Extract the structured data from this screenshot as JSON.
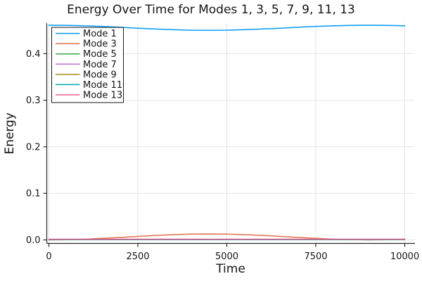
{
  "colors": {
    "background": "#FFFFFF",
    "grid": "#E3E3E3",
    "axis": "#2A2A2A",
    "text": "#141414",
    "legend_border": "#1A1A1A",
    "legend_background": "#FFFFFF"
  },
  "chart_data": {
    "type": "line",
    "title": "Energy Over Time for Modes 1, 3, 5, 7, 9, 11, 13",
    "xlabel": "Time",
    "ylabel": "Energy",
    "xlim": [
      -70,
      10290
    ],
    "ylim": [
      -0.008,
      0.465
    ],
    "grid": true,
    "legend_position": "top-left",
    "x_ticks": [
      0,
      2500,
      5000,
      7500,
      10000
    ],
    "x_tick_labels": [
      "0",
      "2500",
      "5000",
      "7500",
      "10000"
    ],
    "y_ticks": [
      0.0,
      0.1,
      0.2,
      0.3,
      0.4
    ],
    "y_tick_labels": [
      "0.0",
      "0.1",
      "0.2",
      "0.3",
      "0.4"
    ],
    "x": [
      0,
      500,
      1000,
      1500,
      2000,
      2500,
      3000,
      3500,
      4000,
      4500,
      5000,
      5500,
      6000,
      6500,
      7000,
      7500,
      8000,
      8500,
      9000,
      9500,
      10000
    ],
    "series": [
      {
        "name": "Mode 1",
        "color": "#009AFA",
        "values": [
          0.461,
          0.4607,
          0.4597,
          0.4583,
          0.4565,
          0.4545,
          0.4528,
          0.4513,
          0.4503,
          0.45,
          0.4503,
          0.4513,
          0.4528,
          0.4545,
          0.4565,
          0.4583,
          0.4597,
          0.4607,
          0.461,
          0.4607,
          0.4597
        ]
      },
      {
        "name": "Mode 3",
        "color": "#E36F47",
        "values": [
          0.0,
          0.0004,
          0.0015,
          0.0033,
          0.0053,
          0.0075,
          0.0096,
          0.0113,
          0.0124,
          0.0128,
          0.0124,
          0.0113,
          0.0096,
          0.0075,
          0.0053,
          0.0033,
          0.0015,
          0.0004,
          0.0,
          0.0004,
          0.0015
        ]
      },
      {
        "name": "Mode 5",
        "color": "#3DA44E",
        "values": [
          0.0008,
          0.0008,
          0.0008,
          0.0008,
          0.0008,
          0.0008,
          0.0008,
          0.0008,
          0.0008,
          0.0008,
          0.0008,
          0.0008,
          0.0008,
          0.0008,
          0.0008,
          0.0008,
          0.0008,
          0.0008,
          0.0008,
          0.0008,
          0.0008
        ]
      },
      {
        "name": "Mode 7",
        "color": "#C371D2",
        "values": [
          0.0008,
          0.0008,
          0.0008,
          0.0008,
          0.0008,
          0.0008,
          0.0008,
          0.0008,
          0.0008,
          0.0008,
          0.0008,
          0.0008,
          0.0008,
          0.0008,
          0.0008,
          0.0008,
          0.0008,
          0.0008,
          0.0008,
          0.0008,
          0.0008
        ]
      },
      {
        "name": "Mode 9",
        "color": "#AC8E18",
        "values": [
          0.0008,
          0.0008,
          0.0008,
          0.0008,
          0.0008,
          0.0008,
          0.0008,
          0.0008,
          0.0008,
          0.0008,
          0.0008,
          0.0008,
          0.0008,
          0.0008,
          0.0008,
          0.0008,
          0.0008,
          0.0008,
          0.0008,
          0.0008,
          0.0008
        ]
      },
      {
        "name": "Mode 11",
        "color": "#00AAAE",
        "values": [
          0.0008,
          0.0008,
          0.0008,
          0.0008,
          0.0008,
          0.0008,
          0.0008,
          0.0008,
          0.0008,
          0.0008,
          0.0008,
          0.0008,
          0.0008,
          0.0008,
          0.0008,
          0.0008,
          0.0008,
          0.0008,
          0.0008,
          0.0008,
          0.0008
        ]
      },
      {
        "name": "Mode 13",
        "color": "#ED5E93",
        "values": [
          0.0015,
          0.0015,
          0.0015,
          0.0015,
          0.0015,
          0.0015,
          0.0015,
          0.0015,
          0.0015,
          0.0015,
          0.0015,
          0.0015,
          0.0015,
          0.0015,
          0.0015,
          0.0015,
          0.0015,
          0.0015,
          0.0015,
          0.0015,
          0.0015
        ]
      }
    ]
  }
}
